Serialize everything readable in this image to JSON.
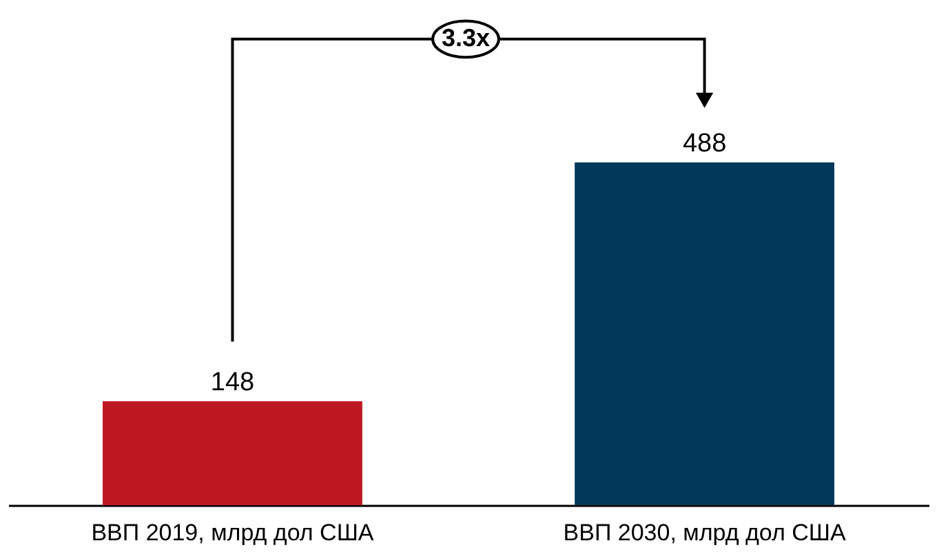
{
  "chart_data": {
    "type": "bar",
    "categories": [
      "ВВП 2019, млрд дол США",
      "ВВП 2030, млрд дол США"
    ],
    "values": [
      148,
      488
    ],
    "colors": [
      "#be1823",
      "#02395b"
    ],
    "data_labels": true,
    "annotations": [
      "3.3x"
    ],
    "grid": false
  }
}
